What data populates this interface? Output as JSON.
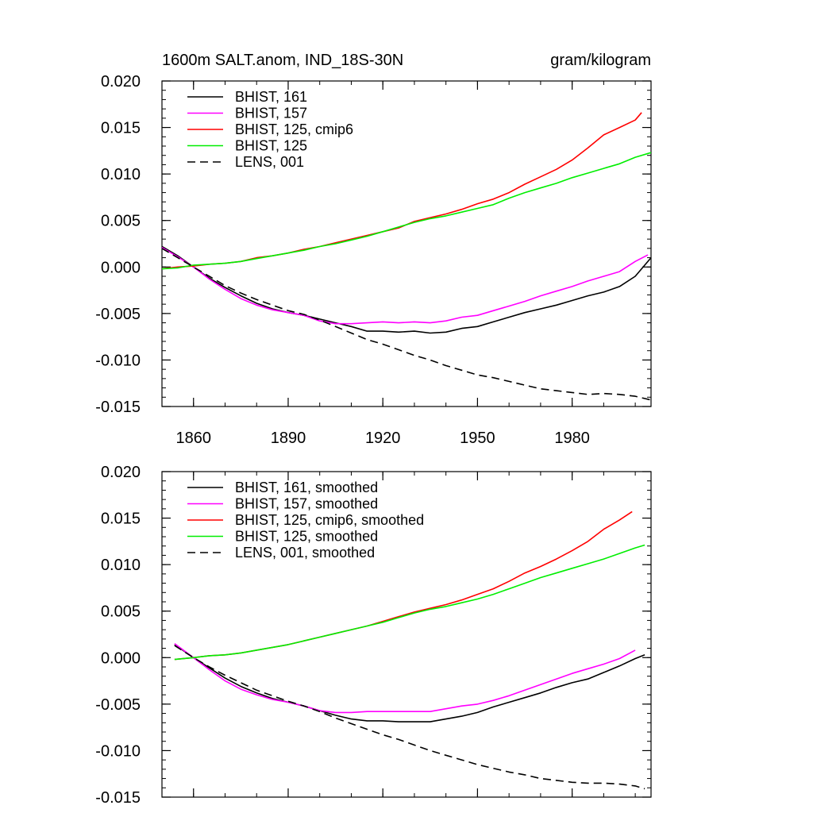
{
  "chart_data": [
    {
      "type": "line",
      "title_left": "1600m SALT.anom, IND_18S-30N",
      "title_right": "gram/kilogram",
      "xlabel": "",
      "ylabel": "",
      "xlim": [
        1850,
        2005
      ],
      "ylim": [
        -0.015,
        0.02
      ],
      "x_ticks": [
        1860,
        1890,
        1920,
        1950,
        1980
      ],
      "x_tick_labels": [
        "1860",
        "1890",
        "1920",
        "1950",
        "1980"
      ],
      "y_ticks": [
        -0.015,
        -0.01,
        -0.005,
        0.0,
        0.005,
        0.01,
        0.015,
        0.02
      ],
      "y_tick_labels": [
        "-0.015",
        "-0.010",
        "-0.005",
        "0.000",
        "0.005",
        "0.010",
        "0.015",
        "0.020"
      ],
      "legend_position": "top-left",
      "series": [
        {
          "name": "BHIST, 161",
          "color": "#000000",
          "dash": "solid",
          "x": [
            1850,
            1855,
            1860,
            1865,
            1870,
            1875,
            1880,
            1885,
            1890,
            1895,
            1900,
            1905,
            1910,
            1915,
            1920,
            1925,
            1930,
            1935,
            1940,
            1945,
            1950,
            1955,
            1960,
            1965,
            1970,
            1975,
            1980,
            1985,
            1990,
            1995,
            2000,
            2005
          ],
          "values": [
            0.0022,
            0.0012,
            0.0,
            -0.0012,
            -0.0022,
            -0.0031,
            -0.0039,
            -0.0045,
            -0.0049,
            -0.0052,
            -0.0056,
            -0.006,
            -0.0064,
            -0.0069,
            -0.0069,
            -0.007,
            -0.0069,
            -0.0071,
            -0.007,
            -0.0066,
            -0.0064,
            -0.0059,
            -0.0054,
            -0.0049,
            -0.0045,
            -0.0041,
            -0.0036,
            -0.0031,
            -0.0027,
            -0.0021,
            -0.001,
            0.001
          ]
        },
        {
          "name": "BHIST, 157",
          "color": "#ff00ff",
          "dash": "solid",
          "x": [
            1850,
            1855,
            1860,
            1865,
            1870,
            1875,
            1880,
            1885,
            1890,
            1895,
            1900,
            1905,
            1910,
            1915,
            1920,
            1925,
            1930,
            1935,
            1940,
            1945,
            1950,
            1955,
            1960,
            1965,
            1970,
            1975,
            1980,
            1985,
            1990,
            1995,
            2000,
            2004
          ],
          "values": [
            0.0021,
            0.0011,
            0.0,
            -0.0013,
            -0.0024,
            -0.0034,
            -0.0041,
            -0.0046,
            -0.0049,
            -0.0052,
            -0.0058,
            -0.0061,
            -0.0061,
            -0.006,
            -0.0059,
            -0.006,
            -0.0059,
            -0.006,
            -0.0058,
            -0.0054,
            -0.0052,
            -0.0047,
            -0.0042,
            -0.0037,
            -0.0031,
            -0.0026,
            -0.0021,
            -0.0015,
            -0.001,
            -0.0005,
            0.0006,
            0.0013
          ]
        },
        {
          "name": "BHIST, 125, cmip6",
          "color": "#ff0000",
          "dash": "solid",
          "x": [
            1850,
            1855,
            1860,
            1865,
            1870,
            1875,
            1880,
            1885,
            1890,
            1895,
            1900,
            1905,
            1910,
            1915,
            1920,
            1925,
            1930,
            1935,
            1940,
            1945,
            1950,
            1955,
            1960,
            1965,
            1970,
            1975,
            1980,
            1985,
            1990,
            1995,
            2000,
            2002
          ],
          "values": [
            -0.0002,
            0.0,
            0.0001,
            0.0003,
            0.0004,
            0.0006,
            0.001,
            0.0012,
            0.0015,
            0.0019,
            0.0022,
            0.0026,
            0.003,
            0.0034,
            0.0038,
            0.0042,
            0.0049,
            0.0053,
            0.0057,
            0.0062,
            0.0068,
            0.0073,
            0.008,
            0.0089,
            0.0097,
            0.0105,
            0.0115,
            0.0128,
            0.0142,
            0.015,
            0.0158,
            0.0166
          ]
        },
        {
          "name": "BHIST, 125",
          "color": "#00ee00",
          "dash": "solid",
          "x": [
            1850,
            1855,
            1860,
            1865,
            1870,
            1875,
            1880,
            1885,
            1890,
            1895,
            1900,
            1905,
            1910,
            1915,
            1920,
            1925,
            1930,
            1935,
            1940,
            1945,
            1950,
            1955,
            1960,
            1965,
            1970,
            1975,
            1980,
            1985,
            1990,
            1995,
            2000,
            2005
          ],
          "values": [
            -0.0002,
            -0.0001,
            0.0002,
            0.0003,
            0.0004,
            0.0006,
            0.0009,
            0.0012,
            0.0015,
            0.0018,
            0.0022,
            0.0025,
            0.0029,
            0.0033,
            0.0038,
            0.0043,
            0.0048,
            0.0052,
            0.0055,
            0.0059,
            0.0063,
            0.0067,
            0.0074,
            0.008,
            0.0085,
            0.009,
            0.0096,
            0.0101,
            0.0106,
            0.0111,
            0.0118,
            0.0123
          ]
        },
        {
          "name": "LENS, 001",
          "color": "#000000",
          "dash": "dashed",
          "x": [
            1850,
            1855,
            1860,
            1865,
            1870,
            1875,
            1880,
            1885,
            1890,
            1895,
            1900,
            1905,
            1910,
            1915,
            1920,
            1925,
            1930,
            1935,
            1940,
            1945,
            1950,
            1955,
            1960,
            1965,
            1970,
            1975,
            1980,
            1985,
            1990,
            1995,
            2000,
            2005
          ],
          "values": [
            0.002,
            0.001,
            0.0,
            -0.001,
            -0.002,
            -0.0028,
            -0.0035,
            -0.0041,
            -0.0047,
            -0.0051,
            -0.0057,
            -0.0064,
            -0.0071,
            -0.0078,
            -0.0083,
            -0.0089,
            -0.0095,
            -0.01,
            -0.0106,
            -0.0111,
            -0.0116,
            -0.0119,
            -0.0123,
            -0.0127,
            -0.0131,
            -0.0133,
            -0.0135,
            -0.0137,
            -0.0136,
            -0.0137,
            -0.0139,
            -0.0143
          ]
        }
      ]
    },
    {
      "type": "line",
      "title_left": "",
      "title_right": "",
      "xlabel": "",
      "ylabel": "",
      "xlim": [
        1850,
        2005
      ],
      "ylim": [
        -0.015,
        0.02
      ],
      "x_ticks": [
        1860,
        1890,
        1920,
        1950,
        1980
      ],
      "x_tick_labels": [],
      "y_ticks": [
        -0.015,
        -0.01,
        -0.005,
        0.0,
        0.005,
        0.01,
        0.015,
        0.02
      ],
      "y_tick_labels": [
        "-0.015",
        "-0.010",
        "-0.005",
        "0.000",
        "0.005",
        "0.010",
        "0.015",
        "0.020"
      ],
      "legend_position": "top-left",
      "series": [
        {
          "name": "BHIST, 161, smoothed",
          "color": "#000000",
          "dash": "solid",
          "x": [
            1854,
            1860,
            1865,
            1870,
            1875,
            1880,
            1885,
            1890,
            1895,
            1900,
            1905,
            1910,
            1915,
            1920,
            1925,
            1930,
            1935,
            1940,
            1945,
            1950,
            1955,
            1960,
            1965,
            1970,
            1975,
            1980,
            1985,
            1990,
            1995,
            2000,
            2003
          ],
          "values": [
            0.0014,
            0.0,
            -0.0011,
            -0.0022,
            -0.0031,
            -0.0038,
            -0.0044,
            -0.0048,
            -0.0052,
            -0.0057,
            -0.0062,
            -0.0066,
            -0.0068,
            -0.0068,
            -0.0069,
            -0.0069,
            -0.0069,
            -0.0066,
            -0.0063,
            -0.0059,
            -0.0053,
            -0.0048,
            -0.0043,
            -0.0038,
            -0.0032,
            -0.0027,
            -0.0023,
            -0.0016,
            -0.0009,
            -0.0001,
            0.0003
          ]
        },
        {
          "name": "BHIST, 157, smoothed",
          "color": "#ff00ff",
          "dash": "solid",
          "x": [
            1854,
            1860,
            1865,
            1870,
            1875,
            1880,
            1885,
            1890,
            1895,
            1900,
            1905,
            1910,
            1915,
            1920,
            1925,
            1930,
            1935,
            1940,
            1945,
            1950,
            1955,
            1960,
            1965,
            1970,
            1975,
            1980,
            1985,
            1990,
            1995,
            2000
          ],
          "values": [
            0.0015,
            0.0,
            -0.0013,
            -0.0025,
            -0.0034,
            -0.004,
            -0.0045,
            -0.0048,
            -0.0052,
            -0.0057,
            -0.0059,
            -0.0059,
            -0.0058,
            -0.0058,
            -0.0058,
            -0.0058,
            -0.0058,
            -0.0055,
            -0.0052,
            -0.005,
            -0.0046,
            -0.0041,
            -0.0035,
            -0.0029,
            -0.0023,
            -0.0017,
            -0.0012,
            -0.0007,
            -0.0001,
            0.0008
          ]
        },
        {
          "name": "BHIST, 125, cmip6, smoothed",
          "color": "#ff0000",
          "dash": "solid",
          "x": [
            1854,
            1860,
            1865,
            1870,
            1875,
            1880,
            1885,
            1890,
            1895,
            1900,
            1905,
            1910,
            1915,
            1920,
            1925,
            1930,
            1935,
            1940,
            1945,
            1950,
            1955,
            1960,
            1965,
            1970,
            1975,
            1980,
            1985,
            1990,
            1995,
            1999
          ],
          "values": [
            -0.0002,
            0.0,
            0.0002,
            0.0003,
            0.0005,
            0.0008,
            0.0011,
            0.0014,
            0.0018,
            0.0022,
            0.0026,
            0.003,
            0.0034,
            0.0039,
            0.0044,
            0.0049,
            0.0053,
            0.0057,
            0.0062,
            0.0068,
            0.0074,
            0.0082,
            0.0091,
            0.0098,
            0.0106,
            0.0115,
            0.0125,
            0.0138,
            0.0148,
            0.0157
          ]
        },
        {
          "name": "BHIST, 125, smoothed",
          "color": "#00ee00",
          "dash": "solid",
          "x": [
            1854,
            1860,
            1865,
            1870,
            1875,
            1880,
            1885,
            1890,
            1895,
            1900,
            1905,
            1910,
            1915,
            1920,
            1925,
            1930,
            1935,
            1940,
            1945,
            1950,
            1955,
            1960,
            1965,
            1970,
            1975,
            1980,
            1985,
            1990,
            1995,
            2000,
            2003
          ],
          "values": [
            -0.0002,
            0.0,
            0.0002,
            0.0003,
            0.0005,
            0.0008,
            0.0011,
            0.0014,
            0.0018,
            0.0022,
            0.0026,
            0.003,
            0.0034,
            0.0038,
            0.0043,
            0.0048,
            0.0052,
            0.0055,
            0.0059,
            0.0063,
            0.0068,
            0.0074,
            0.008,
            0.0086,
            0.0091,
            0.0096,
            0.0101,
            0.0106,
            0.0112,
            0.0118,
            0.0121
          ]
        },
        {
          "name": "LENS, 001, smoothed",
          "color": "#000000",
          "dash": "dashed",
          "x": [
            1854,
            1860,
            1865,
            1870,
            1875,
            1880,
            1885,
            1890,
            1895,
            1900,
            1905,
            1910,
            1915,
            1920,
            1925,
            1930,
            1935,
            1940,
            1945,
            1950,
            1955,
            1960,
            1965,
            1970,
            1975,
            1980,
            1985,
            1990,
            1995,
            2000,
            2003
          ],
          "values": [
            0.0013,
            0.0,
            -0.001,
            -0.0019,
            -0.0027,
            -0.0035,
            -0.0041,
            -0.0047,
            -0.0052,
            -0.0058,
            -0.0065,
            -0.0071,
            -0.0077,
            -0.0083,
            -0.0088,
            -0.0094,
            -0.01,
            -0.0105,
            -0.011,
            -0.0115,
            -0.0119,
            -0.0123,
            -0.0126,
            -0.013,
            -0.0132,
            -0.0134,
            -0.0135,
            -0.0135,
            -0.0136,
            -0.0138,
            -0.0141
          ]
        }
      ]
    }
  ]
}
